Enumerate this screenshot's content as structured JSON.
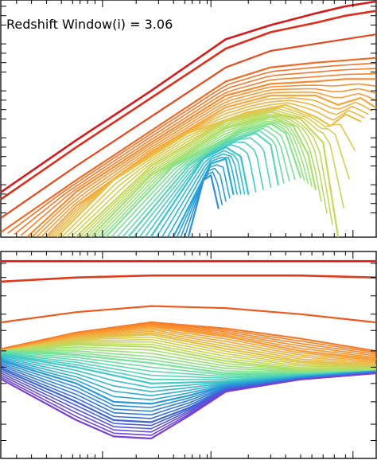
{
  "chart_data": [
    {
      "panel": "top",
      "type": "line",
      "title": "Redshift Window(i) = 3.06",
      "xlabel": "",
      "ylabel": "",
      "xscale": "log",
      "yscale": "log",
      "grid": false,
      "legend": "none",
      "xlim": [
        0.0,
        1.0
      ],
      "ylim": [
        0.0,
        1.0
      ],
      "colormap": "rainbow",
      "series_count": 48,
      "series": [
        {
          "color": "#d7191c",
          "x": [
            0.0,
            0.2,
            0.4,
            0.6,
            0.72,
            0.84,
            0.92,
            1.0
          ],
          "y": [
            0.19,
            0.41,
            0.62,
            0.84,
            0.9,
            0.95,
            0.98,
            1.0
          ]
        },
        {
          "color": "#de2d1a",
          "x": [
            0.0,
            0.2,
            0.4,
            0.6,
            0.72,
            0.84,
            0.92,
            1.0
          ],
          "y": [
            0.16,
            0.38,
            0.59,
            0.8,
            0.87,
            0.91,
            0.94,
            0.96
          ]
        },
        {
          "color": "#e8461a",
          "x": [
            0.0,
            0.2,
            0.4,
            0.6,
            0.72,
            0.84,
            0.92,
            1.0
          ],
          "y": [
            0.08,
            0.3,
            0.51,
            0.72,
            0.79,
            0.82,
            0.84,
            0.86
          ]
        },
        {
          "color": "#f26a24",
          "x": [
            0.0,
            0.2,
            0.4,
            0.6,
            0.72,
            0.84,
            0.92,
            1.0
          ],
          "y": [
            0.02,
            0.24,
            0.45,
            0.66,
            0.72,
            0.74,
            0.75,
            0.76
          ]
        },
        {
          "color": "#f78a2e",
          "x": [
            0.07,
            0.2,
            0.4,
            0.6,
            0.72,
            0.84,
            0.92,
            1.0
          ],
          "y": [
            0.0,
            0.19,
            0.4,
            0.6,
            0.65,
            0.66,
            0.67,
            0.67
          ]
        },
        {
          "color": "#f9a43c",
          "x": [
            0.12,
            0.2,
            0.4,
            0.6,
            0.72,
            0.84,
            0.9,
            0.96,
            1.0
          ],
          "y": [
            0.0,
            0.13,
            0.36,
            0.55,
            0.6,
            0.6,
            0.56,
            0.59,
            0.55
          ]
        },
        {
          "color": "#e7c24a",
          "x": [
            0.15,
            0.3,
            0.5,
            0.66,
            0.76,
            0.84,
            0.88,
            0.92,
            0.96
          ],
          "y": [
            0.0,
            0.24,
            0.44,
            0.53,
            0.56,
            0.51,
            0.47,
            0.52,
            0.49
          ]
        },
        {
          "color": "#c9d65a",
          "x": [
            0.2,
            0.4,
            0.6,
            0.72,
            0.8,
            0.86,
            0.9
          ],
          "y": [
            0.0,
            0.3,
            0.49,
            0.53,
            0.5,
            0.4,
            0.0
          ]
        },
        {
          "color": "#a8e06c",
          "x": [
            0.24,
            0.4,
            0.6,
            0.72,
            0.78,
            0.82,
            0.84
          ],
          "y": [
            0.0,
            0.26,
            0.46,
            0.51,
            0.47,
            0.35,
            0.2
          ]
        },
        {
          "color": "#86e38c",
          "x": [
            0.28,
            0.46,
            0.64,
            0.72,
            0.76,
            0.8
          ],
          "y": [
            0.0,
            0.3,
            0.45,
            0.48,
            0.44,
            0.25
          ]
        },
        {
          "color": "#5dd6b4",
          "x": [
            0.34,
            0.5,
            0.6,
            0.68,
            0.72,
            0.74
          ],
          "y": [
            0.0,
            0.3,
            0.4,
            0.44,
            0.39,
            0.22
          ]
        },
        {
          "color": "#36c3d0",
          "x": [
            0.4,
            0.54,
            0.6,
            0.64,
            0.66
          ],
          "y": [
            0.0,
            0.33,
            0.38,
            0.34,
            0.18
          ]
        },
        {
          "color": "#26a9d8",
          "x": [
            0.46,
            0.56,
            0.6,
            0.62
          ],
          "y": [
            0.0,
            0.31,
            0.33,
            0.18
          ]
        },
        {
          "color": "#2f8fde",
          "x": [
            0.5,
            0.54,
            0.56,
            0.58
          ],
          "y": [
            0.0,
            0.24,
            0.26,
            0.12
          ]
        }
      ]
    },
    {
      "panel": "bottom",
      "type": "line",
      "title": "",
      "xlabel": "",
      "ylabel": "",
      "xscale": "log",
      "yscale": "log",
      "grid": false,
      "legend": "none",
      "xlim": [
        0.0,
        1.0
      ],
      "ylim": [
        0.0,
        1.0
      ],
      "colormap": "rainbow",
      "series_count": 60,
      "series": [
        {
          "color": "#d7191c",
          "x": [
            0.0,
            0.2,
            0.4,
            0.6,
            0.8,
            1.0
          ],
          "y": [
            0.96,
            0.96,
            0.96,
            0.96,
            0.96,
            0.96
          ]
        },
        {
          "color": "#e03a1c",
          "x": [
            0.0,
            0.2,
            0.4,
            0.6,
            0.8,
            1.0
          ],
          "y": [
            0.86,
            0.88,
            0.89,
            0.89,
            0.89,
            0.88
          ]
        },
        {
          "color": "#ec5a20",
          "x": [
            0.0,
            0.2,
            0.4,
            0.6,
            0.8,
            1.0
          ],
          "y": [
            0.66,
            0.71,
            0.74,
            0.73,
            0.7,
            0.66
          ]
        },
        {
          "color": "#f67a27",
          "x": [
            0.0,
            0.2,
            0.4,
            0.6,
            0.8,
            1.0
          ],
          "y": [
            0.53,
            0.61,
            0.66,
            0.63,
            0.58,
            0.52
          ]
        },
        {
          "color": "#f99b34",
          "x": [
            0.0,
            0.2,
            0.4,
            0.6,
            0.8,
            1.0
          ],
          "y": [
            0.52,
            0.6,
            0.64,
            0.59,
            0.52,
            0.48
          ]
        },
        {
          "color": "#e2c24c",
          "x": [
            0.0,
            0.2,
            0.4,
            0.6,
            0.8,
            1.0
          ],
          "y": [
            0.52,
            0.58,
            0.6,
            0.53,
            0.47,
            0.45
          ]
        },
        {
          "color": "#b6de62",
          "x": [
            0.0,
            0.2,
            0.4,
            0.6,
            0.8,
            1.0
          ],
          "y": [
            0.52,
            0.55,
            0.54,
            0.47,
            0.43,
            0.43
          ]
        },
        {
          "color": "#78e29a",
          "x": [
            0.0,
            0.2,
            0.4,
            0.6,
            0.8,
            1.0
          ],
          "y": [
            0.52,
            0.5,
            0.46,
            0.41,
            0.41,
            0.42
          ]
        },
        {
          "color": "#3fcac8",
          "x": [
            0.0,
            0.2,
            0.4,
            0.6,
            0.8,
            1.0
          ],
          "y": [
            0.5,
            0.44,
            0.36,
            0.37,
            0.4,
            0.42
          ]
        },
        {
          "color": "#2a9ad9",
          "x": [
            0.0,
            0.2,
            0.3,
            0.4,
            0.5,
            0.6,
            0.8,
            1.0
          ],
          "y": [
            0.47,
            0.36,
            0.27,
            0.26,
            0.3,
            0.35,
            0.39,
            0.42
          ]
        },
        {
          "color": "#3d64d8",
          "x": [
            0.0,
            0.2,
            0.3,
            0.4,
            0.5,
            0.6,
            0.8,
            1.0
          ],
          "y": [
            0.43,
            0.27,
            0.18,
            0.17,
            0.24,
            0.33,
            0.38,
            0.41
          ]
        },
        {
          "color": "#7b3fd6",
          "x": [
            0.0,
            0.2,
            0.3,
            0.4,
            0.5,
            0.6,
            0.8,
            1.0
          ],
          "y": [
            0.38,
            0.18,
            0.1,
            0.09,
            0.2,
            0.32,
            0.38,
            0.41
          ]
        }
      ]
    }
  ]
}
